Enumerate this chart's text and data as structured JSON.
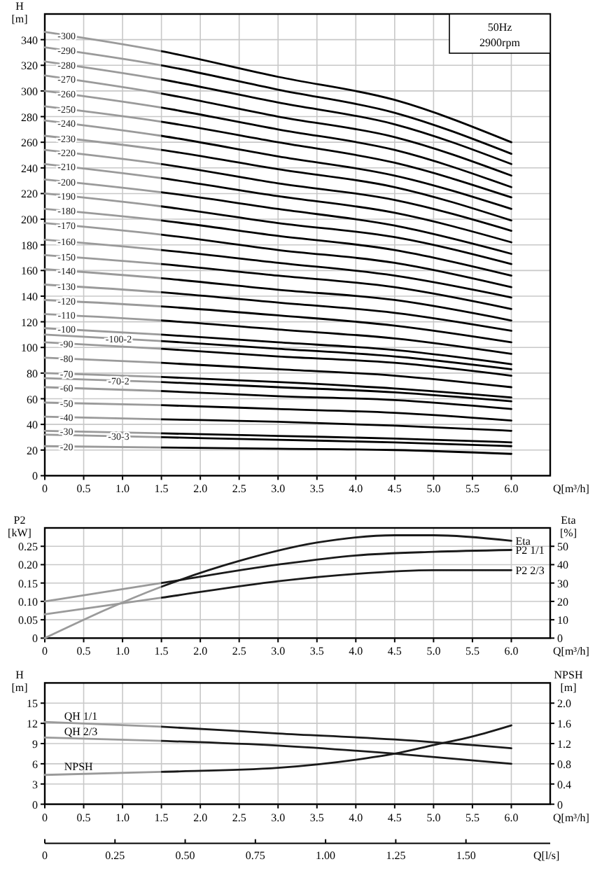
{
  "chart_data": [
    {
      "type": "line",
      "xlabel": "Q[m³/h]",
      "ylabel": "H [m]",
      "annotations": [
        "50Hz",
        "2900rpm"
      ],
      "grid": true,
      "xlim": [
        0,
        6.5
      ],
      "ylim": [
        0,
        360
      ],
      "xticks": [
        0,
        0.5,
        {
          "value": 1,
          "label": "1.0"
        },
        1.5,
        {
          "value": 2,
          "label": "2.0"
        },
        2.5,
        {
          "value": 3,
          "label": "3.0"
        },
        3.5,
        {
          "value": 4,
          "label": "4.0"
        },
        4.5,
        {
          "value": 5,
          "label": "5.0"
        },
        5.5,
        {
          "value": 6,
          "label": "6.0"
        }
      ],
      "yticks": [
        0,
        20,
        40,
        60,
        80,
        100,
        120,
        140,
        160,
        180,
        200,
        220,
        240,
        260,
        280,
        300,
        320,
        340
      ],
      "x": [
        0,
        1.5,
        3,
        4.5,
        6
      ],
      "series": [
        {
          "name": "-20",
          "color": "#000000",
          "values": [
            23,
            22,
            21,
            20,
            17
          ]
        },
        {
          "name": "-30-3",
          "color": "#000000",
          "values": [
            32,
            30,
            28,
            26,
            23
          ]
        },
        {
          "name": "-30",
          "color": "#000000",
          "values": [
            35,
            33,
            31,
            29,
            26
          ]
        },
        {
          "name": "-40",
          "color": "#000000",
          "values": [
            46,
            44,
            42,
            39,
            35
          ]
        },
        {
          "name": "-50",
          "color": "#000000",
          "values": [
            57,
            55,
            52,
            49,
            43
          ]
        },
        {
          "name": "-60",
          "color": "#000000",
          "values": [
            69,
            66,
            62,
            59,
            52
          ]
        },
        {
          "name": "-70-2",
          "color": "#000000",
          "values": [
            76,
            73,
            69,
            65,
            58
          ]
        },
        {
          "name": "-70",
          "color": "#000000",
          "values": [
            80,
            77,
            73,
            68,
            61
          ]
        },
        {
          "name": "-80",
          "color": "#000000",
          "values": [
            92,
            88,
            83,
            78,
            69
          ]
        },
        {
          "name": "-90",
          "color": "#000000",
          "values": [
            104,
            99,
            93,
            88,
            78
          ]
        },
        {
          "name": "-100-2",
          "color": "#000000",
          "values": [
            110,
            105,
            99,
            93,
            83
          ]
        },
        {
          "name": "-100",
          "color": "#000000",
          "values": [
            115,
            110,
            104,
            98,
            87
          ]
        },
        {
          "name": "-110",
          "color": "#000000",
          "values": [
            126,
            121,
            114,
            107,
            95
          ]
        },
        {
          "name": "-120",
          "color": "#000000",
          "values": [
            137,
            132,
            125,
            117,
            104
          ]
        },
        {
          "name": "-130",
          "color": "#000000",
          "values": [
            149,
            143,
            135,
            127,
            113
          ]
        },
        {
          "name": "-140",
          "color": "#000000",
          "values": [
            161,
            154,
            145,
            137,
            121
          ]
        },
        {
          "name": "-150",
          "color": "#000000",
          "values": [
            172,
            165,
            156,
            147,
            130
          ]
        },
        {
          "name": "-160",
          "color": "#000000",
          "values": [
            184,
            176,
            166,
            156,
            139
          ]
        },
        {
          "name": "-170",
          "color": "#000000",
          "values": [
            197,
            188,
            176,
            166,
            147
          ]
        },
        {
          "name": "-180",
          "color": "#000000",
          "values": [
            208,
            199,
            187,
            176,
            156
          ]
        },
        {
          "name": "-190",
          "color": "#000000",
          "values": [
            220,
            210,
            197,
            186,
            165
          ]
        },
        {
          "name": "-200",
          "color": "#000000",
          "values": [
            231,
            221,
            208,
            195,
            173
          ]
        },
        {
          "name": "-210",
          "color": "#000000",
          "values": [
            243,
            232,
            218,
            205,
            182
          ]
        },
        {
          "name": "-220",
          "color": "#000000",
          "values": [
            254,
            243,
            228,
            215,
            191
          ]
        },
        {
          "name": "-230",
          "color": "#000000",
          "values": [
            265,
            254,
            239,
            225,
            199
          ]
        },
        {
          "name": "-240",
          "color": "#000000",
          "values": [
            277,
            265,
            249,
            234,
            208
          ]
        },
        {
          "name": "-250",
          "color": "#000000",
          "values": [
            288,
            276,
            260,
            244,
            217
          ]
        },
        {
          "name": "-260",
          "color": "#000000",
          "values": [
            300,
            287,
            270,
            254,
            225
          ]
        },
        {
          "name": "-270",
          "color": "#000000",
          "values": [
            312,
            298,
            280,
            264,
            234
          ]
        },
        {
          "name": "-280",
          "color": "#000000",
          "values": [
            323,
            309,
            291,
            274,
            243
          ]
        },
        {
          "name": "-290",
          "color": "#000000",
          "values": [
            334,
            320,
            301,
            283,
            251
          ]
        },
        {
          "name": "-300",
          "color": "#000000",
          "values": [
            346,
            331,
            311,
            293,
            260
          ]
        }
      ]
    },
    {
      "type": "line",
      "xlabel": "Q[m³/h]",
      "ylabel": "P2 [kW]",
      "y2label": "Eta [%]",
      "grid": true,
      "xlim": [
        0,
        6.5
      ],
      "ylim": [
        0,
        0.3
      ],
      "y2lim": [
        0,
        60
      ],
      "xticks": [
        0,
        0.5,
        {
          "value": 1,
          "label": "1.0"
        },
        1.5,
        {
          "value": 2,
          "label": "2.0"
        },
        2.5,
        {
          "value": 3,
          "label": "3.0"
        },
        3.5,
        {
          "value": 4,
          "label": "4.0"
        },
        4.5,
        {
          "value": 5,
          "label": "5.0"
        },
        5.5,
        {
          "value": 6,
          "label": "6.0"
        }
      ],
      "yticks": [
        0,
        {
          "value": 0.05,
          "label": "0.05"
        },
        {
          "value": 0.1,
          "label": "0.10"
        },
        0.15,
        {
          "value": 0.2,
          "label": "0.20"
        },
        0.25
      ],
      "y2ticks": [
        0,
        10,
        20,
        30,
        40,
        50
      ],
      "series": [
        {
          "name": "Eta",
          "color": "#1a1a1a",
          "axis": "y2",
          "x": [
            0,
            1.5,
            2.5,
            3.5,
            4.5,
            5,
            6
          ],
          "values": [
            0,
            28,
            42,
            52,
            56,
            56,
            53
          ]
        },
        {
          "name": "P2 1/1",
          "color": "#1a1a1a",
          "x": [
            0,
            1.5,
            3,
            4,
            5,
            6
          ],
          "values": [
            0.1,
            0.15,
            0.2,
            0.225,
            0.235,
            0.24
          ]
        },
        {
          "name": "P2 2/3",
          "color": "#1a1a1a",
          "x": [
            0,
            1.5,
            3,
            4,
            5,
            6
          ],
          "values": [
            0.065,
            0.11,
            0.155,
            0.175,
            0.185,
            0.185
          ]
        }
      ]
    },
    {
      "type": "line",
      "xlabel": "Q[m³/h]",
      "ylabel": "H [m]",
      "y2label": "NPSH [m]",
      "x2label": "Q[l/s]",
      "grid": true,
      "xlim": [
        0,
        6.5
      ],
      "ylim": [
        0,
        18
      ],
      "y2lim": [
        0,
        2.4
      ],
      "x2lim": [
        0,
        1.8
      ],
      "xticks": [
        0,
        0.5,
        {
          "value": 1,
          "label": "1.0"
        },
        1.5,
        {
          "value": 2,
          "label": "2.0"
        },
        2.5,
        {
          "value": 3,
          "label": "3.0"
        },
        3.5,
        {
          "value": 4,
          "label": "4.0"
        },
        4.5,
        {
          "value": 5,
          "label": "5.0"
        },
        5.5,
        {
          "value": 6,
          "label": "6.0"
        }
      ],
      "yticks": [
        0,
        3,
        6,
        9,
        12,
        15
      ],
      "y2ticks": [
        0,
        0.4,
        0.8,
        1.2,
        1.6,
        {
          "value": 2,
          "label": "2.0"
        }
      ],
      "x2ticks": [
        0,
        0.25,
        {
          "value": 0.5,
          "label": "0.50"
        },
        0.75,
        {
          "value": 1,
          "label": "1.00"
        },
        1.25,
        {
          "value": 1.5,
          "label": "1.50"
        }
      ],
      "series": [
        {
          "name": "QH 1/1",
          "color": "#1a1a1a",
          "x": [
            0,
            1.5,
            3,
            4.5,
            6
          ],
          "values": [
            12.2,
            11.5,
            10.5,
            9.6,
            8.3
          ]
        },
        {
          "name": "QH 2/3",
          "color": "#1a1a1a",
          "x": [
            0,
            1.5,
            3,
            4.5,
            6
          ],
          "values": [
            9.9,
            9.4,
            8.7,
            7.5,
            6
          ]
        },
        {
          "name": "NPSH",
          "color": "#1a1a1a",
          "axis": "y2",
          "x": [
            0,
            1.5,
            3,
            4,
            4.5,
            5,
            5.5,
            6
          ],
          "values": [
            0.58,
            0.64,
            0.72,
            0.88,
            1,
            1.17,
            1.34,
            1.56
          ]
        }
      ]
    }
  ]
}
